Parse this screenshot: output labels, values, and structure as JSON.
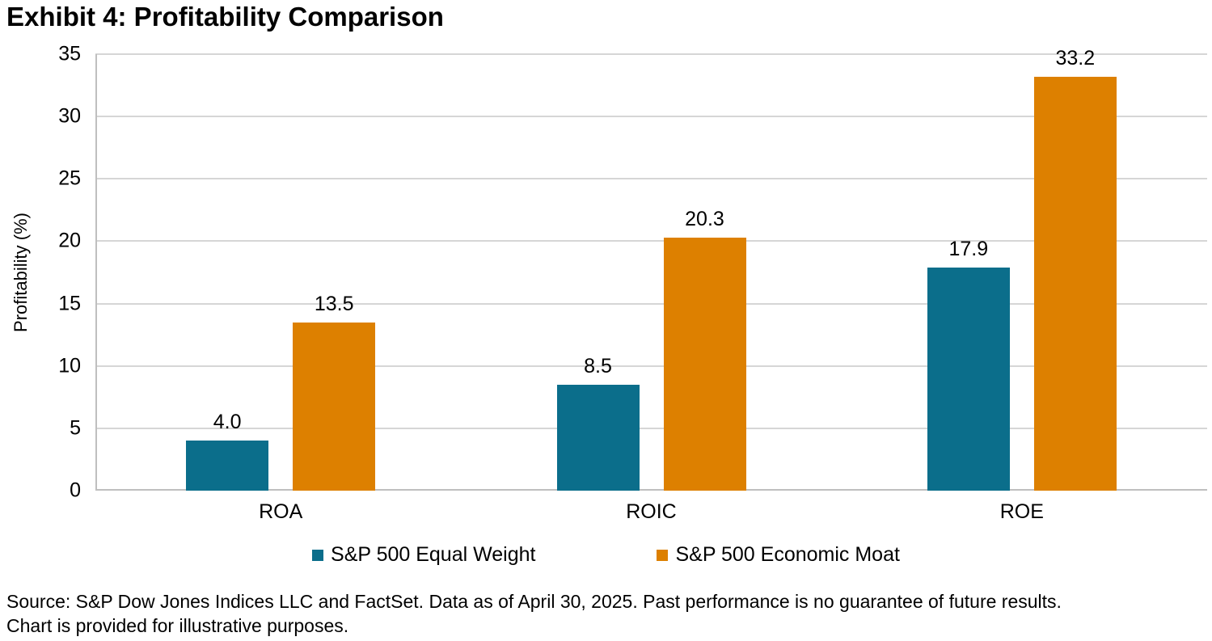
{
  "chart_data": {
    "type": "bar",
    "title": "Exhibit 4: Profitability Comparison",
    "categories": [
      "ROA",
      "ROIC",
      "ROE"
    ],
    "series": [
      {
        "name": "S&P 500 Equal Weight",
        "color": "#0B6E8B",
        "values": [
          4.0,
          8.5,
          17.9
        ],
        "value_labels": [
          "4.0",
          "8.5",
          "17.9"
        ]
      },
      {
        "name": "S&P 500 Economic Moat",
        "color": "#DD8000",
        "values": [
          13.5,
          20.3,
          33.2
        ],
        "value_labels": [
          "13.5",
          "20.3",
          "33.2"
        ]
      }
    ],
    "xlabel": "",
    "ylabel": "Profitability (%)",
    "ylim": [
      0,
      35
    ],
    "yticks": [
      0,
      5,
      10,
      15,
      20,
      25,
      30,
      35
    ],
    "grid": "horizontal",
    "legend_position": "bottom",
    "colors": {
      "grid": "#D6D6D6",
      "axis": "#BFBFBF",
      "text": "#000000"
    }
  },
  "footer": {
    "lines": [
      "Source: S&P Dow Jones Indices LLC and FactSet. Data as of April 30, 2025. Past performance is no guarantee of future results.",
      "Chart is provided for illustrative purposes."
    ]
  }
}
